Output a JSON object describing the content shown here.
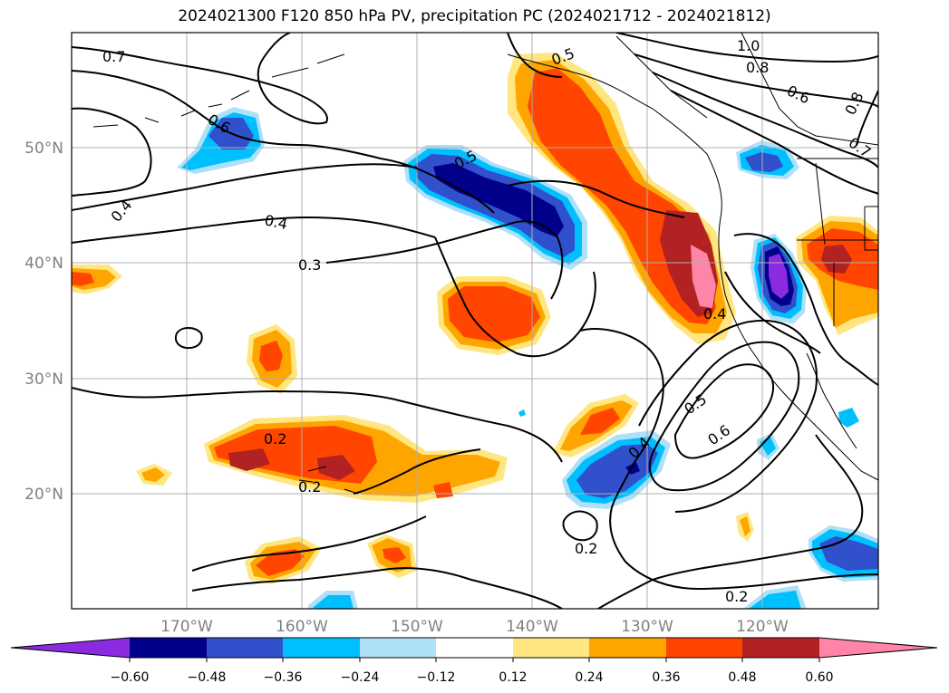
{
  "title": "2024021300 F120 850 hPa PV, precipitation PC (2024021712 - 2024021812)",
  "map": {
    "lon_ticks": [
      "170°W",
      "160°W",
      "150°W",
      "140°W",
      "130°W",
      "120°W"
    ],
    "lat_ticks": [
      "50°N",
      "40°N",
      "30°N",
      "20°N"
    ],
    "contour_labels": [
      "0.7",
      "1.0",
      "0.8",
      "0.6",
      "0.8",
      "0.7",
      "0.5",
      "0.6",
      "0.5",
      "0.4",
      "0.4",
      "0.3",
      "0.4",
      "0.2",
      "0.2",
      "0.5",
      "0.6",
      "0.4",
      "0.2",
      "0.2"
    ]
  },
  "colorbar": {
    "tick_labels": [
      "−0.60",
      "−0.48",
      "−0.36",
      "−0.24",
      "−0.12",
      "0.12",
      "0.24",
      "0.36",
      "0.48",
      "0.60"
    ],
    "colors": [
      "#8a2be2",
      "#00008b",
      "#3050cc",
      "#00bfff",
      "#aee0f8",
      "#ffffff",
      "#ffe680",
      "#ffa500",
      "#ff4500",
      "#b22222",
      "#ff85a8"
    ]
  }
}
